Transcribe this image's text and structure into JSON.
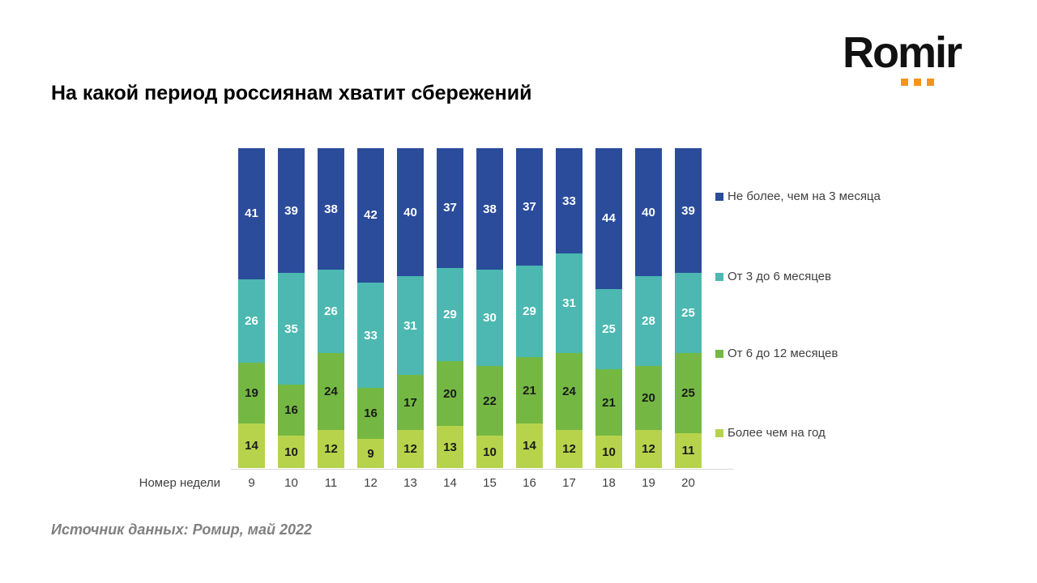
{
  "title": "На какой период россиянам хватит сбережений",
  "source": "Источник данных: Ромир, май 2022",
  "logo": {
    "text": "Romir",
    "dot_color": "#F7941E"
  },
  "chart_data": {
    "type": "bar",
    "stacked": true,
    "title": "На какой период россиянам хватит сбережений",
    "xlabel": "Номер недели",
    "ylabel": "",
    "legend_position": "right",
    "grid": false,
    "categories": [
      9,
      10,
      11,
      12,
      13,
      14,
      15,
      16,
      17,
      18,
      19,
      20
    ],
    "series": [
      {
        "name": "Не более, чем на 3 месяца",
        "color": "#2B4C9B",
        "label_color": "#ffffff",
        "values": [
          41,
          39,
          38,
          42,
          40,
          37,
          38,
          37,
          33,
          44,
          40,
          39
        ]
      },
      {
        "name": "От 3 до 6 месяцев",
        "color": "#4CB8B1",
        "label_color": "#ffffff",
        "values": [
          26,
          35,
          26,
          33,
          31,
          29,
          30,
          29,
          31,
          25,
          28,
          25
        ]
      },
      {
        "name": "От 6 до 12 месяцев",
        "color": "#74B843",
        "label_color": "#1a1a1a",
        "values": [
          19,
          16,
          24,
          16,
          17,
          20,
          22,
          21,
          24,
          21,
          20,
          25
        ]
      },
      {
        "name": "Более чем на год",
        "color": "#B7D34C",
        "label_color": "#1a1a1a",
        "values": [
          14,
          10,
          12,
          9,
          12,
          13,
          10,
          14,
          12,
          10,
          12,
          11
        ]
      }
    ]
  }
}
